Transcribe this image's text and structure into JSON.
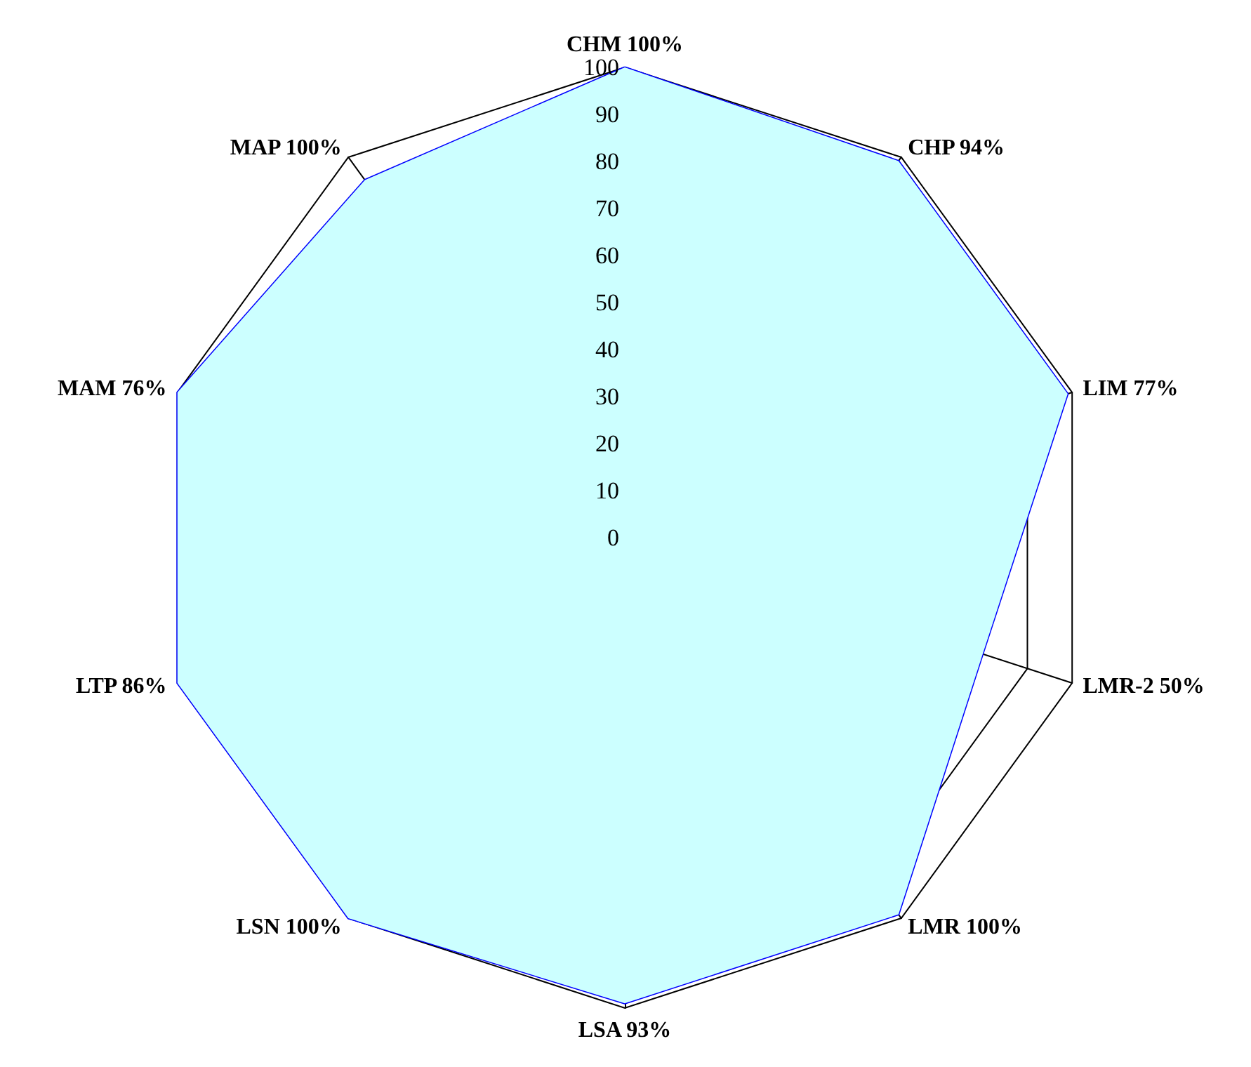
{
  "chart_data": {
    "type": "radar",
    "categories": [
      "CHM 100%",
      "CHP 94%",
      "LIM 77%",
      "LMR-2 50%",
      "LMR 100%",
      "LSA 93%",
      "LSN 100%",
      "LTP 86%",
      "MAM 76%",
      "MAP 100%"
    ],
    "series": [
      {
        "color": "#ccffff",
        "values": [
          100,
          99,
          99,
          80,
          99,
          99,
          100,
          100,
          100,
          94
        ]
      }
    ],
    "ylim": [
      0,
      100
    ],
    "yticks": [
      0,
      10,
      20,
      30,
      40,
      50,
      60,
      70,
      80,
      90,
      100
    ],
    "grid": true,
    "marker": "none"
  }
}
